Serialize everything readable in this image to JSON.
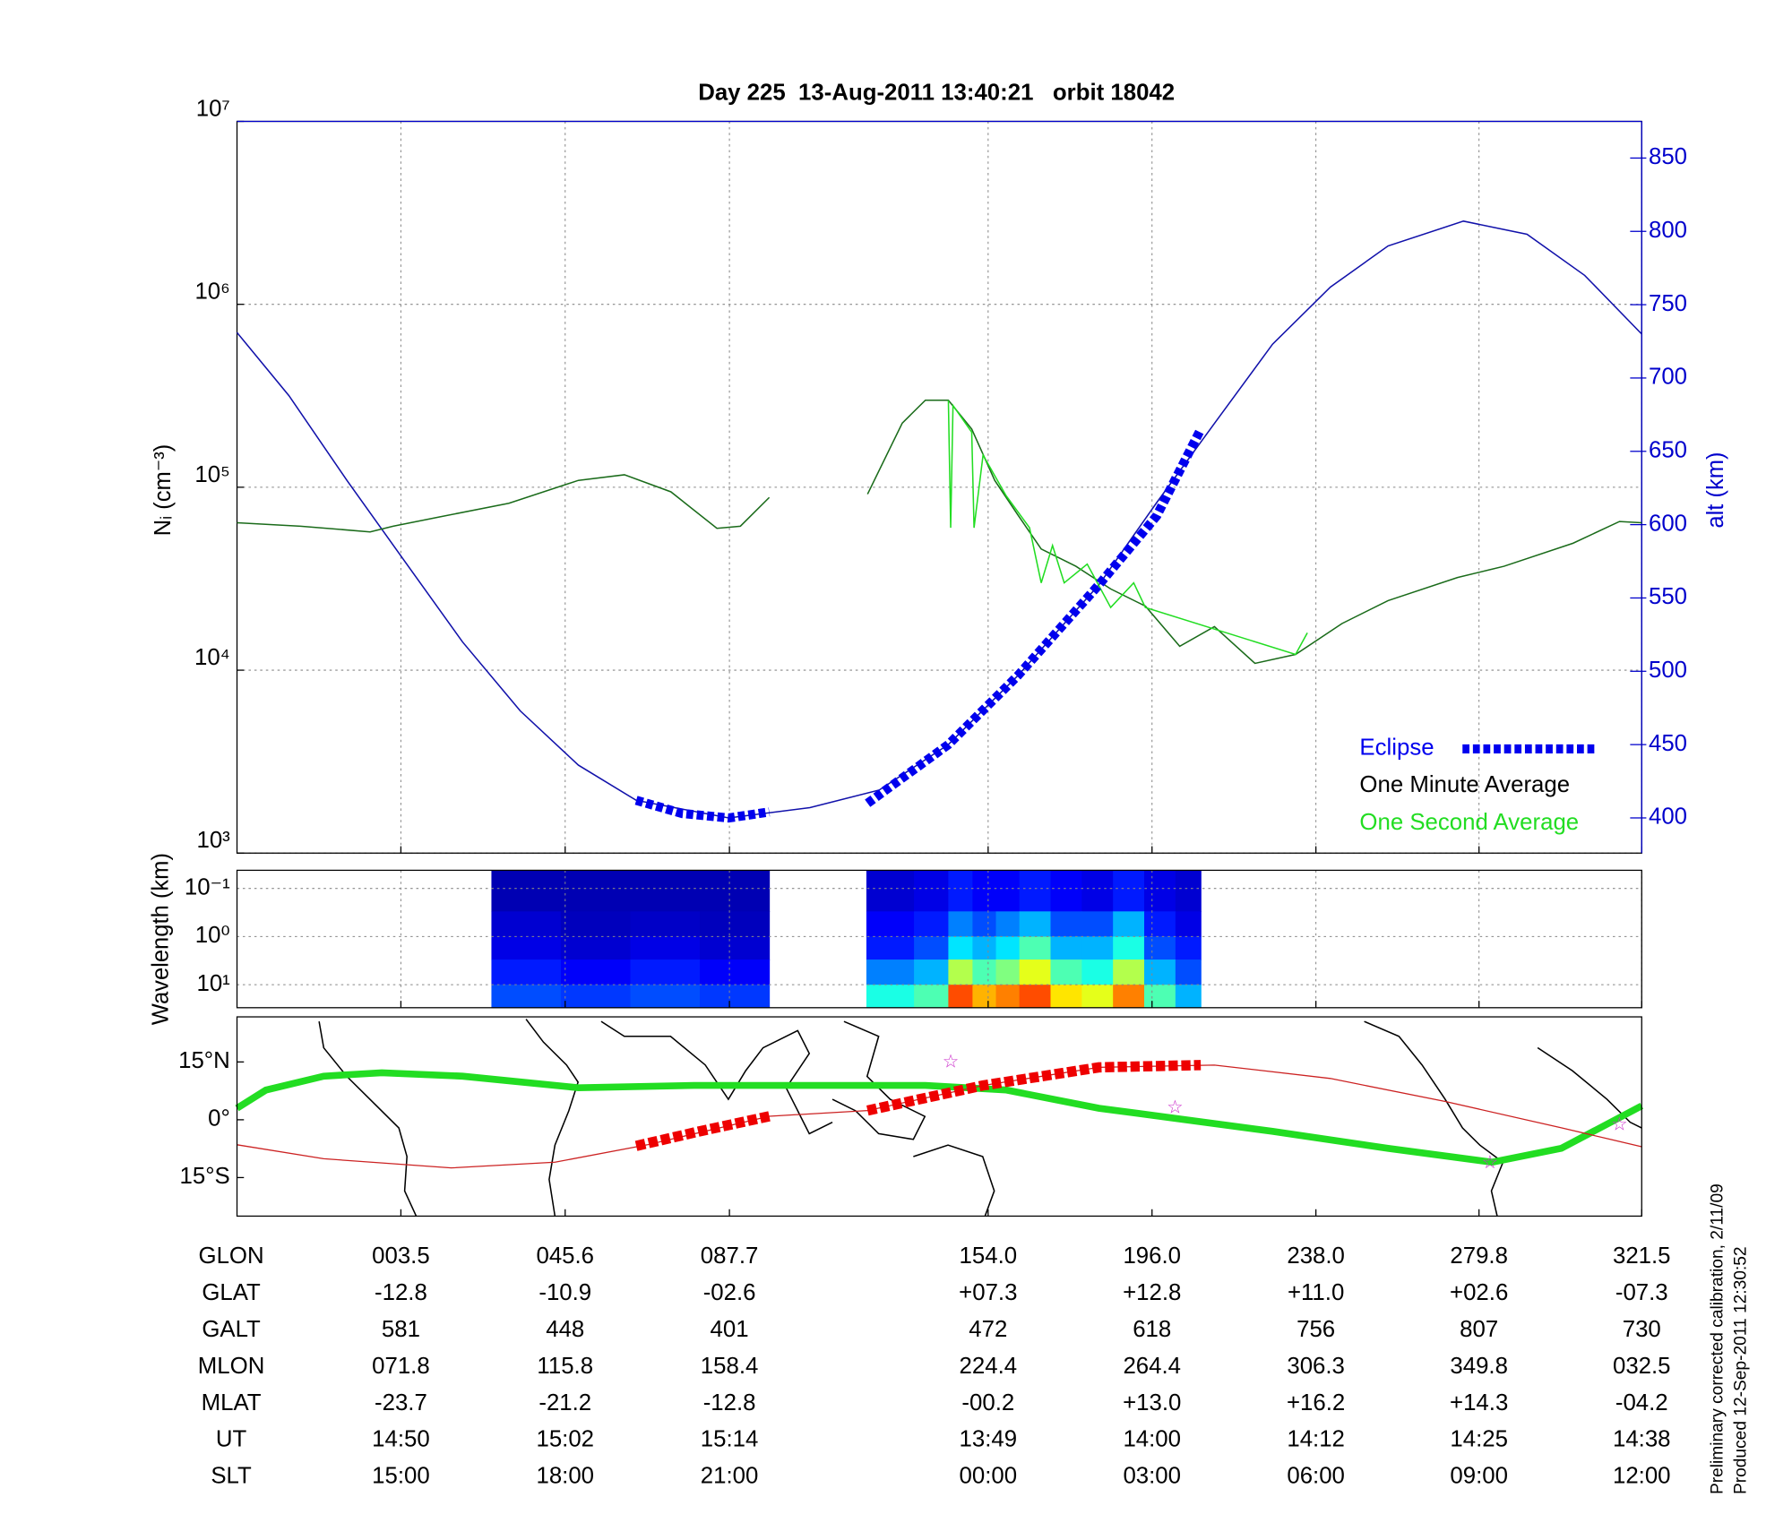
{
  "chart_data": [
    {
      "type": "line",
      "title": "Day 225  13-Aug-2011 13:40:21   orbit 18042",
      "ylabel": "Nᵢ (cm⁻³)",
      "y2label": "alt (km)",
      "xlabel": "GLON",
      "xlim": [
        -38.5,
        321.5
      ],
      "xticks": [
        {
          "value": 3.5,
          "label": "003.5"
        },
        {
          "value": 45.6,
          "label": "045.6"
        },
        {
          "value": 87.7,
          "label": "087.7"
        },
        {
          "value": 154.0,
          "label": "154.0"
        },
        {
          "value": 196.0,
          "label": "196.0"
        },
        {
          "value": 238.0,
          "label": "238.0"
        },
        {
          "value": 279.8,
          "label": "279.8"
        },
        {
          "value": 321.5,
          "label": "321.5"
        }
      ],
      "ylim": [
        1000,
        10000000
      ],
      "log_y": true,
      "yticks": [
        {
          "value": 1000,
          "label": "10³"
        },
        {
          "value": 10000,
          "label": "10⁴"
        },
        {
          "value": 100000,
          "label": "10⁵"
        },
        {
          "value": 1000000,
          "label": "10⁶"
        },
        {
          "value": 10000000,
          "label": "10⁷"
        }
      ],
      "y2lim": [
        376,
        875
      ],
      "y2ticks": [
        400,
        450,
        500,
        550,
        600,
        650,
        700,
        750,
        800,
        850
      ],
      "y2_color": "#0000cc",
      "grid": true,
      "legend": "lower right",
      "series": [
        {
          "name": "Eclipse",
          "color": "#0000ee",
          "label_color": "#0000ee",
          "axis": "y2",
          "style": "dashed-thick",
          "x": [
            63.8,
            75.6,
            87.5,
            97.9,
            110,
            123.1,
            143.8,
            161.6,
            182.4,
            197.2,
            208.5
          ],
          "values": [
            412,
            403,
            400,
            404,
            null,
            410,
            450,
            497,
            559,
            606,
            665
          ]
        },
        {
          "name": "One Minute Average",
          "color": "#1a6b1a",
          "label_color": "#000000",
          "x": [
            -38.5,
            -22.2,
            -4.4,
            1.5,
            13.4,
            31.2,
            49.0,
            60.8,
            72.7,
            84.5,
            90.5,
            97.9,
            110,
            123.1,
            132.0,
            137.9,
            143.8,
            149.8,
            155.7,
            161.6,
            167.6,
            176.5,
            185.4,
            194.3,
            203.1,
            212.0,
            222.4,
            232.8,
            244.7,
            256.5,
            274.3,
            286.2,
            303.9,
            315.8,
            321.5
          ],
          "values": [
            64000,
            61300,
            57000,
            61300,
            68800,
            81700,
            109000,
            117000,
            94400,
            59600,
            61300,
            87900,
            null,
            91700,
            224000,
            299000,
            299000,
            208000,
            109000,
            70800,
            46000,
            37000,
            27800,
            22400,
            13500,
            17300,
            10900,
            12200,
            18000,
            24000,
            32100,
            37000,
            49400,
            65000,
            64000
          ]
        },
        {
          "name": "One Second Average",
          "color": "#22dd22",
          "label_color": "#22dd22",
          "x": [
            143.8,
            144.4,
            145.0,
            149.8,
            150.4,
            152.7,
            158.6,
            164.6,
            167.6,
            170.5,
            173.5,
            179.4,
            185.4,
            191.3,
            194.3,
            232.8,
            235.8
          ],
          "values": [
            299000,
            60000,
            280000,
            200000,
            60000,
            150000,
            90000,
            60000,
            30000,
            48000,
            30000,
            38000,
            22000,
            30000,
            22000,
            12200,
            16000
          ]
        },
        {
          "color": "#1111aa",
          "axis": "y2",
          "x": [
            -38.5,
            -25.2,
            -10.3,
            4.5,
            19.3,
            34.1,
            49.0,
            63.8,
            87.5,
            108.3,
            126.1,
            143.8,
            161.6,
            182.4,
            197.2,
            212.0,
            226.9,
            241.7,
            256.5,
            275.8,
            292.1,
            306.9,
            321.5
          ],
          "values": [
            731,
            688,
            630,
            575,
            520,
            473,
            436,
            412,
            400,
            407,
            419,
            450,
            497,
            559,
            615,
            669,
            723,
            762,
            790,
            807,
            798,
            770,
            730
          ]
        }
      ]
    },
    {
      "type": "heatmap",
      "ylabel": "Wavelength (km)",
      "log_y": true,
      "y_inverted": true,
      "ylim": [
        0.042,
        30
      ],
      "yticks": [
        {
          "value": 0.1,
          "label": "10⁻¹"
        },
        {
          "value": 1,
          "label": "10⁰"
        },
        {
          "value": 10,
          "label": "10¹"
        }
      ],
      "colormap": "jet",
      "zlim": [
        0,
        1
      ],
      "x_edges": [
        26.7,
        44.5,
        62.3,
        80.1,
        97.9,
        122.8,
        135,
        143.8,
        150,
        156,
        162,
        170,
        178,
        186,
        194,
        202,
        208.5
      ],
      "y_edges": [
        0.042,
        0.3,
        1,
        3,
        10,
        30
      ],
      "values": [
        [
          0.05,
          0.05,
          0.05,
          0.05,
          null,
          0.08,
          0.1,
          0.15,
          0.12,
          0.12,
          0.15,
          0.12,
          0.1,
          0.15,
          0.1,
          0.08
        ],
        [
          0.08,
          0.06,
          0.07,
          0.06,
          null,
          0.12,
          0.15,
          0.25,
          0.2,
          0.25,
          0.3,
          0.2,
          0.2,
          0.3,
          0.15,
          0.1
        ],
        [
          0.1,
          0.08,
          0.1,
          0.08,
          null,
          0.15,
          0.2,
          0.35,
          0.3,
          0.35,
          0.45,
          0.3,
          0.3,
          0.4,
          0.2,
          0.15
        ],
        [
          0.15,
          0.12,
          0.15,
          0.12,
          null,
          0.25,
          0.3,
          0.55,
          0.45,
          0.5,
          0.6,
          0.45,
          0.4,
          0.55,
          0.3,
          0.2
        ],
        [
          0.2,
          0.18,
          0.2,
          0.18,
          null,
          0.4,
          0.45,
          0.8,
          0.7,
          0.75,
          0.8,
          0.65,
          0.6,
          0.75,
          0.45,
          0.3
        ]
      ]
    },
    {
      "type": "map",
      "ylim": [
        -25,
        26.7
      ],
      "yticks": [
        {
          "value": 15,
          "label": "15°N"
        },
        {
          "value": 0,
          "label": "0°"
        },
        {
          "value": -15,
          "label": "15°S"
        }
      ],
      "series": [
        {
          "color": "#22dd22",
          "width": 6,
          "x": [
            -38.5,
            -31.1,
            -16.3,
            -1.4,
            19.3,
            49.0,
            78.6,
            108.3,
            137.9,
            158.7,
            182.4,
            200.2,
            226.9,
            256.5,
            283.2,
            300.9,
            321.5
          ],
          "values": [
            3.0,
            7.7,
            11.3,
            12.2,
            11.3,
            8.3,
            8.9,
            8.9,
            8.9,
            7.7,
            3.0,
            0.6,
            -3.0,
            -7.4,
            -11.0,
            -7.4,
            3.6
          ]
        },
        {
          "color": "#cc2222",
          "width": 1,
          "x": [
            -38.5,
            -16.3,
            16.4,
            43.0,
            66.7,
            97.9,
            123.1,
            152.7,
            182.4,
            212.0,
            241.7,
            271.3,
            300.9,
            321.5
          ],
          "values": [
            -6.5,
            -10.1,
            -12.5,
            -11.0,
            -6.5,
            0.9,
            2.4,
            8.9,
            13.6,
            14.2,
            10.7,
            4.7,
            -2.1,
            -7.0
          ]
        },
        {
          "color": "#ee0000",
          "width": 9,
          "style": "dashed",
          "x": [
            63.8,
            80,
            97.9,
            110,
            123.1,
            152.7,
            182.4,
            208.5
          ],
          "values": [
            -6.8,
            -3,
            0.9,
            null,
            2.4,
            8.9,
            13.6,
            14.2
          ]
        }
      ],
      "markers": {
        "color": "#cc33cc",
        "x": [
          144.4,
          201.9,
          282.6,
          315.8
        ],
        "values": [
          14.8,
          3.0,
          -11.3,
          -1.5
        ]
      }
    }
  ],
  "table": {
    "rows": [
      {
        "label": "GLAT",
        "cells": [
          "-12.8",
          "-10.9",
          "-02.6",
          "+07.3",
          "+12.8",
          "+11.0",
          "+02.6",
          "-07.3"
        ]
      },
      {
        "label": "GALT",
        "cells": [
          581,
          448,
          401,
          472,
          618,
          756,
          807,
          730
        ]
      },
      {
        "label": "MLON",
        "cells": [
          "071.8",
          "115.8",
          "158.4",
          "224.4",
          "264.4",
          "306.3",
          "349.8",
          "032.5"
        ]
      },
      {
        "label": "MLAT",
        "cells": [
          "-23.7",
          "-21.2",
          "-12.8",
          "-00.2",
          "+13.0",
          "+16.2",
          "+14.3",
          "-04.2"
        ]
      },
      {
        "label": "UT",
        "cells": [
          "14:50",
          "15:02",
          "15:14",
          "13:49",
          "14:00",
          "14:12",
          "14:25",
          "14:38"
        ]
      },
      {
        "label": "SLT",
        "cells": [
          "15:00",
          "18:00",
          "21:00",
          "00:00",
          "03:00",
          "06:00",
          "09:00",
          "12:00"
        ]
      }
    ]
  },
  "footer": [
    "Preliminary corrected calibration, 2/11/09",
    "Produced 12-Sep-2011 12:30:52"
  ]
}
